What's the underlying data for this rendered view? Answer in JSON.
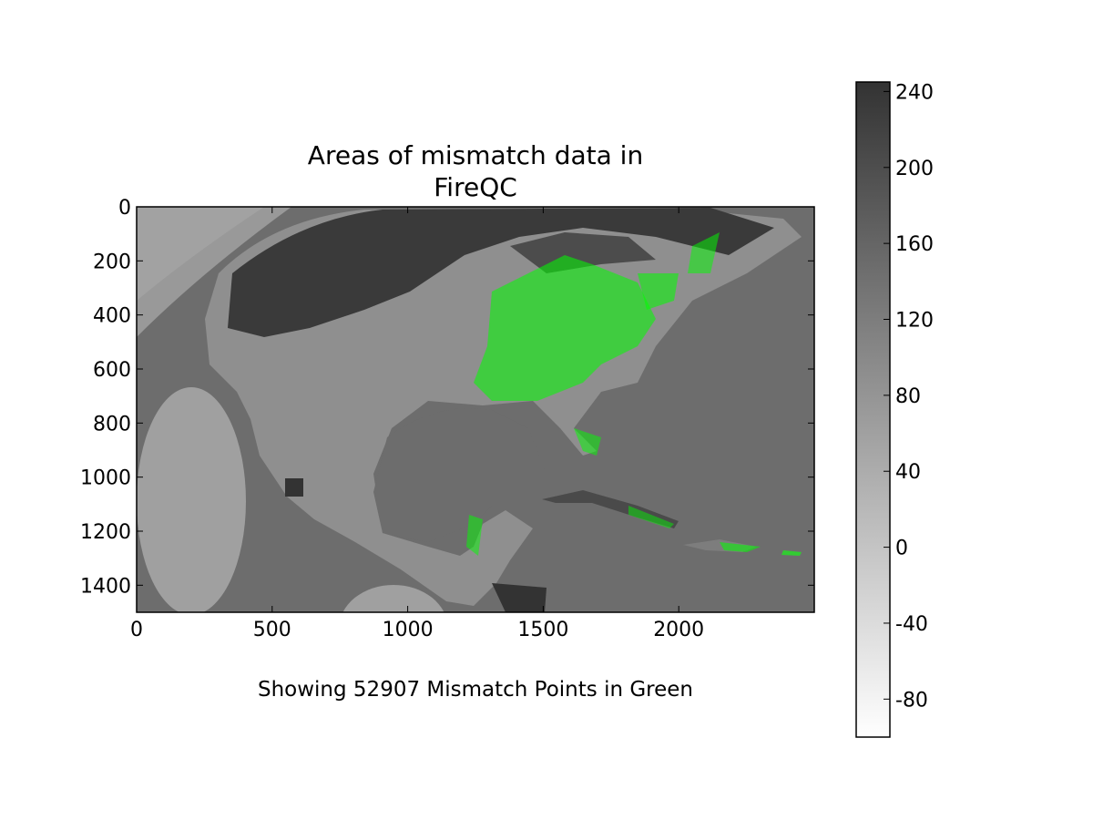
{
  "chart_data": {
    "type": "heatmap",
    "title_lines": [
      "Areas of mismatch data in",
      "FireQC"
    ],
    "xlabel": "",
    "ylabel": "",
    "caption": "Showing 52907 Mismatch Points in Green",
    "xlim": [
      0,
      2500
    ],
    "ylim": [
      1500,
      0
    ],
    "x_ticks": [
      0,
      500,
      1000,
      1500,
      2000
    ],
    "y_ticks": [
      0,
      200,
      400,
      600,
      800,
      1000,
      1200,
      1400
    ],
    "colorbar": {
      "range": [
        -100,
        245
      ],
      "ticks": [
        240,
        200,
        160,
        120,
        80,
        40,
        0,
        -40,
        -80
      ],
      "colormap": "greys",
      "low_color": "#ffffff",
      "high_color": "#333333"
    },
    "mismatch_points": {
      "count": 52907,
      "color": "#00ff00"
    },
    "grid": false
  }
}
